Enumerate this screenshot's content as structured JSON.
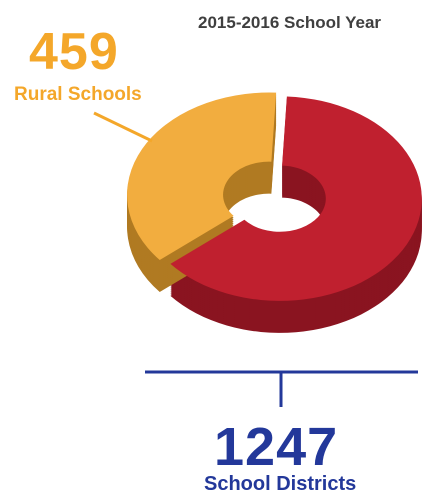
{
  "title": "2015-2016 School Year",
  "chart_data": {
    "type": "pie",
    "style": "3d-donut",
    "title": "2015-2016 School Year",
    "total": 1247,
    "slices": [
      {
        "label": "School Districts",
        "value": 788,
        "color": "#c0202f",
        "side_color": "#8a1420"
      },
      {
        "label": "Rural Schools",
        "value": 459,
        "color": "#f2ad3f",
        "side_color": "#b07a22"
      }
    ]
  },
  "annotations": {
    "rural_value": "459",
    "rural_label": "Rural Schools",
    "districts_value": "1247",
    "districts_label": "School Districts"
  },
  "colors": {
    "rural_accent": "#f4a72a",
    "district_accent": "#23389a",
    "title_color": "#3f3f3f"
  }
}
